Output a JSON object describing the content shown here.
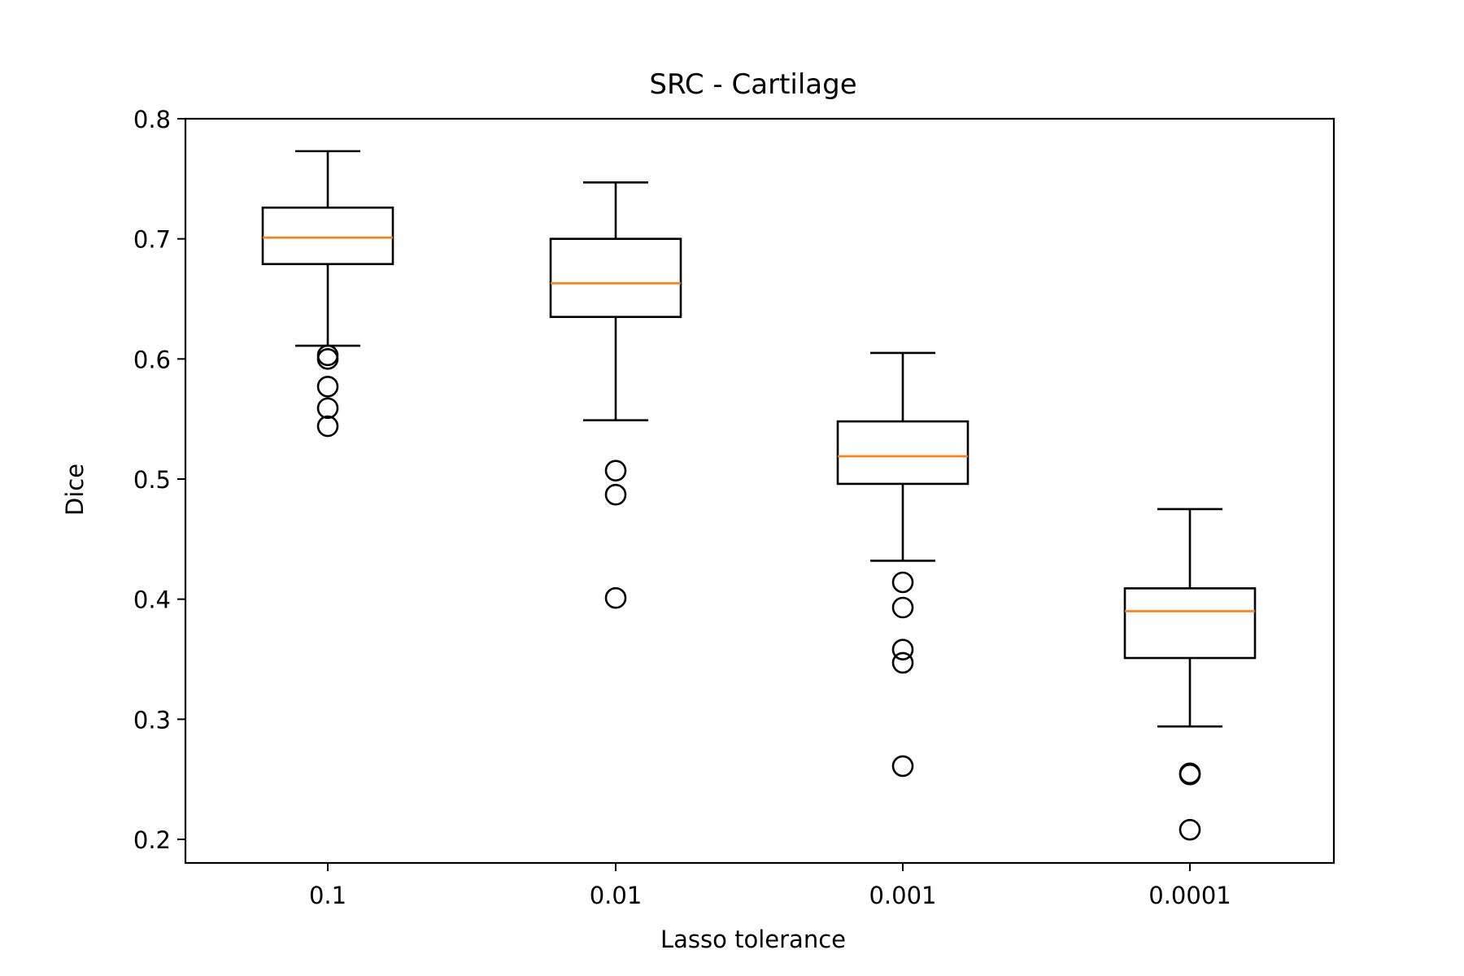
{
  "chart_data": {
    "type": "box",
    "title": "SRC - Cartilage",
    "xlabel": "Lasso tolerance",
    "ylabel": "Dice",
    "categories": [
      "0.1",
      "0.01",
      "0.001",
      "0.0001"
    ],
    "ylim": [
      0.18,
      0.8
    ],
    "yticks": [
      0.2,
      0.3,
      0.4,
      0.5,
      0.6,
      0.7,
      0.8
    ],
    "ytick_labels": [
      "0.2",
      "0.3",
      "0.4",
      "0.5",
      "0.6",
      "0.7",
      "0.8"
    ],
    "grid": false,
    "legend": "none",
    "median_color": "#ff7f0e",
    "box_color": "#000000",
    "boxes": [
      {
        "category": "0.1",
        "whisker_low": 0.611,
        "q1": 0.679,
        "median": 0.701,
        "q3": 0.726,
        "whisker_high": 0.773,
        "outliers": [
          0.603,
          0.6,
          0.577,
          0.559,
          0.544
        ]
      },
      {
        "category": "0.01",
        "whisker_low": 0.549,
        "q1": 0.635,
        "median": 0.663,
        "q3": 0.7,
        "whisker_high": 0.747,
        "outliers": [
          0.507,
          0.487,
          0.401
        ]
      },
      {
        "category": "0.001",
        "whisker_low": 0.432,
        "q1": 0.496,
        "median": 0.519,
        "q3": 0.548,
        "whisker_high": 0.605,
        "outliers": [
          0.414,
          0.393,
          0.358,
          0.347,
          0.261
        ]
      },
      {
        "category": "0.0001",
        "whisker_low": 0.294,
        "q1": 0.351,
        "median": 0.39,
        "q3": 0.409,
        "whisker_high": 0.475,
        "outliers": [
          0.255,
          0.254,
          0.208
        ]
      }
    ]
  }
}
